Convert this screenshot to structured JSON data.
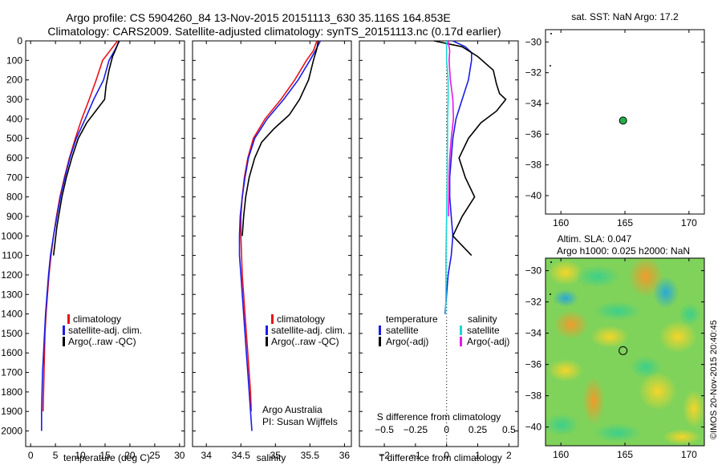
{
  "header": {
    "line1": "Argo profile: CS 5904260_84 13-Nov-2015 20151113_630 35.116S 164.853E",
    "line2": "Climatology: CARS2009. Satellite-adjusted climatology: synTS_20151113.nc (0.17d earlier)"
  },
  "colors": {
    "climatology": "#e8131a",
    "satellite": "#1c1ce6",
    "argo": "#000000",
    "sat_salinity": "#19d6d6",
    "argo_salinity": "#e619e6",
    "marker": "#22b14c"
  },
  "legend": {
    "climatology": "climatology",
    "satellite_adj": "satellite-adj. clim.",
    "argo_raw": "Argo(..raw -QC)",
    "temperature_head": "temperature",
    "salinity_head": "salinity",
    "satellite": "satellite",
    "argo_adj": "Argo(-adj)"
  },
  "credits": {
    "org": "Argo Australia",
    "pi": "PI: Susan Wijffels"
  },
  "map_top": {
    "title": "sat. SST: NaN Argo: 17.2"
  },
  "map_bottom": {
    "title1": "Altim. SLA: 0.047",
    "title2": "Argo h1000: 0.025 h2000: NaN"
  },
  "watermark": "©IMOS 20-Nov-2015 20:40:45",
  "chart_data": [
    {
      "type": "line",
      "panel": "temperature",
      "xlabel": "temperature (deg C)",
      "xlim": [
        -1,
        31
      ],
      "ylim": [
        2080,
        0
      ],
      "y_reversed": true,
      "xticks": [
        0,
        5,
        10,
        15,
        20,
        25,
        30
      ],
      "yticks": [
        0,
        100,
        200,
        300,
        400,
        500,
        600,
        700,
        800,
        900,
        1000,
        1100,
        1200,
        1300,
        1400,
        1500,
        1600,
        1700,
        1800,
        1900,
        2000
      ],
      "series": [
        {
          "name": "climatology",
          "color": "#e8131a",
          "x": [
            17.5,
            16,
            14.5,
            13.2,
            11.8,
            10.3,
            9.0,
            7.8,
            6.8,
            5.9,
            5.2,
            4.6,
            4.1,
            3.7,
            3.4,
            3.1,
            2.9,
            2.8,
            2.7,
            2.6,
            2.5
          ],
          "y": [
            0,
            50,
            100,
            200,
            300,
            400,
            500,
            600,
            700,
            800,
            900,
            1000,
            1100,
            1200,
            1300,
            1400,
            1500,
            1600,
            1700,
            1800,
            1900
          ]
        },
        {
          "name": "satellite-adj. clim.",
          "color": "#1c1ce6",
          "x": [
            17.9,
            16.9,
            15.8,
            14.7,
            12.7,
            11.0,
            9.2,
            7.9,
            6.9,
            6.0,
            5.3,
            4.6,
            4.0,
            3.6,
            3.3,
            3.0,
            2.8,
            2.6,
            2.4,
            2.3,
            2.2,
            2.2
          ],
          "y": [
            0,
            50,
            100,
            200,
            300,
            400,
            500,
            600,
            700,
            800,
            900,
            1000,
            1100,
            1200,
            1300,
            1400,
            1500,
            1600,
            1700,
            1800,
            1900,
            2000
          ]
        },
        {
          "name": "Argo(..raw -QC)",
          "color": "#000000",
          "x": [
            17.8,
            17.2,
            16.5,
            15.8,
            15.2,
            14.9,
            13.4,
            11.3,
            9.6,
            8.3,
            7.2,
            6.3,
            5.3,
            4.6
          ],
          "y": [
            0,
            40,
            80,
            150,
            230,
            300,
            350,
            420,
            500,
            600,
            700,
            800,
            950,
            1100
          ]
        }
      ]
    },
    {
      "type": "line",
      "panel": "salinity",
      "xlabel": "salinity",
      "xlim": [
        33.8,
        36.1
      ],
      "ylim": [
        2080,
        0
      ],
      "y_reversed": true,
      "xticks": [
        34,
        34.5,
        35,
        35.5,
        36
      ],
      "series": [
        {
          "name": "climatology",
          "color": "#e8131a",
          "x": [
            35.6,
            35.55,
            35.45,
            35.28,
            35.08,
            34.85,
            34.68,
            34.6,
            34.55,
            34.52,
            34.5,
            34.5,
            34.51,
            34.52,
            34.54,
            34.56,
            34.58,
            34.6,
            34.62,
            34.64,
            34.65
          ],
          "y": [
            0,
            50,
            100,
            200,
            300,
            400,
            500,
            600,
            700,
            800,
            900,
            1000,
            1100,
            1200,
            1300,
            1400,
            1500,
            1600,
            1700,
            1800,
            1900
          ]
        },
        {
          "name": "satellite-adj. clim.",
          "color": "#1c1ce6",
          "x": [
            35.65,
            35.58,
            35.5,
            35.33,
            35.12,
            34.88,
            34.7,
            34.61,
            34.56,
            34.52,
            34.49,
            34.48,
            34.48,
            34.5,
            34.52,
            34.54,
            34.56,
            34.58,
            34.6,
            34.62,
            34.64,
            34.66
          ],
          "y": [
            0,
            50,
            100,
            200,
            300,
            400,
            500,
            600,
            700,
            800,
            900,
            1000,
            1100,
            1200,
            1300,
            1400,
            1500,
            1600,
            1700,
            1800,
            1900,
            2000
          ]
        },
        {
          "name": "Argo(..raw -QC)",
          "color": "#000000",
          "x": [
            35.62,
            35.6,
            35.55,
            35.48,
            35.35,
            35.2,
            34.98,
            34.8,
            34.7,
            34.62,
            34.57,
            34.54,
            34.52
          ],
          "y": [
            0,
            40,
            100,
            200,
            300,
            380,
            450,
            520,
            600,
            700,
            800,
            900,
            1000
          ]
        }
      ]
    },
    {
      "type": "line",
      "panel": "difference",
      "xlabel": "T difference from climatology",
      "x2label": "S difference from climatology",
      "xlim": [
        -2.8,
        2.3
      ],
      "ylim": [
        2080,
        0
      ],
      "y_reversed": true,
      "xticks": [
        -2,
        -1,
        0,
        1,
        2
      ],
      "x2ticks": [
        -0.5,
        -0.25,
        0,
        0.25,
        0.5
      ],
      "series": [
        {
          "name": "satellite",
          "quantity": "temperature",
          "color": "#1c1ce6",
          "x": [
            0.2,
            0.6,
            0.8,
            0.8,
            0.7,
            0.5,
            0.3,
            0.2,
            0.15,
            0.1,
            0.1,
            0.15,
            0.2,
            0.15,
            0.05,
            0.0,
            -0.05
          ],
          "y": [
            0,
            30,
            60,
            100,
            200,
            300,
            400,
            500,
            600,
            700,
            800,
            900,
            1000,
            1100,
            1200,
            1300,
            1400
          ]
        },
        {
          "name": "Argo(-adj)",
          "quantity": "temperature",
          "color": "#000000",
          "x": [
            -0.4,
            0.5,
            1.0,
            1.5,
            1.6,
            1.7,
            1.9,
            1.6,
            1.1,
            0.7,
            0.4,
            0.6,
            0.9,
            0.5,
            0.2,
            0.5,
            0.8
          ],
          "y": [
            0,
            30,
            80,
            150,
            220,
            270,
            300,
            360,
            420,
            500,
            600,
            700,
            800,
            900,
            1000,
            1050,
            1100
          ]
        },
        {
          "name": "satellite",
          "quantity": "salinity",
          "color": "#19d6d6",
          "x": [
            0.0,
            0.0,
            0.05,
            0.05,
            0.03,
            0.03,
            0.02,
            0.02,
            0.01,
            0.0,
            -0.01,
            -0.02,
            -0.02,
            -0.02,
            -0.03
          ],
          "y": [
            0,
            100,
            200,
            300,
            400,
            500,
            600,
            700,
            800,
            900,
            1000,
            1100,
            1200,
            1300,
            1400
          ]
        },
        {
          "name": "Argo(-adj)",
          "quantity": "salinity",
          "color": "#e619e6",
          "x": [
            0.05,
            0.1,
            0.08,
            0.12,
            0.2,
            0.22,
            0.15,
            0.1,
            0.08,
            0.07,
            0.06
          ],
          "y": [
            0,
            50,
            100,
            200,
            300,
            400,
            500,
            600,
            700,
            800,
            900
          ]
        }
      ]
    },
    {
      "type": "scatter",
      "panel": "map-sst",
      "xlim": [
        158.8,
        171.2
      ],
      "ylim": [
        -41.2,
        -29.2
      ],
      "xticks": [
        160,
        165,
        170
      ],
      "yticks": [
        -30,
        -32,
        -34,
        -36,
        -38,
        -40
      ],
      "points": [
        {
          "x": 164.853,
          "y": -35.116
        }
      ]
    },
    {
      "type": "heatmap",
      "panel": "map-sla",
      "xlim": [
        158.8,
        171.2
      ],
      "ylim": [
        -41.2,
        -29.2
      ],
      "xticks": [
        160,
        165,
        170
      ],
      "yticks": [
        -30,
        -32,
        -34,
        -36,
        -38,
        -40
      ],
      "points": [
        {
          "x": 164.853,
          "y": -35.116
        }
      ]
    }
  ]
}
